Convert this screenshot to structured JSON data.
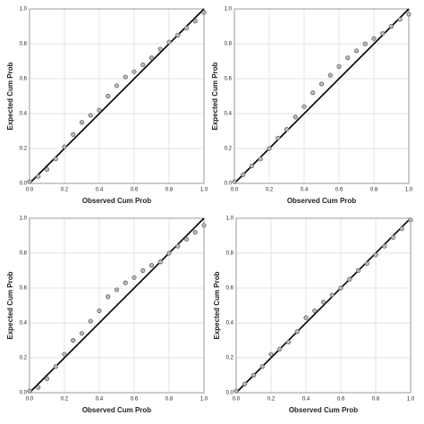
{
  "chart_data": [
    {
      "type": "scatter",
      "x_label": "Observed Cum Prob",
      "y_label": "Expected Cum Prob",
      "x": [
        0,
        0.05,
        0.1,
        0.15,
        0.2,
        0.25,
        0.3,
        0.35,
        0.4,
        0.45,
        0.5,
        0.55,
        0.6,
        0.65,
        0.7,
        0.75,
        0.8,
        0.85,
        0.9,
        0.95,
        1.0
      ],
      "y": [
        0.01,
        0.04,
        0.08,
        0.14,
        0.21,
        0.28,
        0.35,
        0.39,
        0.42,
        0.5,
        0.56,
        0.61,
        0.64,
        0.68,
        0.72,
        0.77,
        0.81,
        0.85,
        0.89,
        0.93,
        0.98
      ],
      "xlim": [
        0,
        1
      ],
      "ylim": [
        0,
        1
      ],
      "xticks": [
        {
          "value": 0,
          "label": "0.0"
        },
        0.2,
        0.4,
        0.6,
        0.8,
        {
          "value": 1,
          "label": "1.0"
        }
      ],
      "yticks": [
        {
          "value": 0,
          "label": "0.0"
        },
        0.2,
        0.4,
        0.6,
        0.8,
        {
          "value": 1,
          "label": "1.0"
        }
      ],
      "grid": true,
      "reference_line": true,
      "color": "#666666"
    },
    {
      "type": "scatter",
      "x_label": "Observed Cum Prob",
      "y_label": "Expected Cum Prob",
      "x": [
        0,
        0.05,
        0.1,
        0.15,
        0.2,
        0.25,
        0.3,
        0.35,
        0.4,
        0.45,
        0.5,
        0.55,
        0.6,
        0.65,
        0.7,
        0.75,
        0.8,
        0.85,
        0.9,
        0.95,
        1.0
      ],
      "y": [
        0.01,
        0.05,
        0.1,
        0.14,
        0.2,
        0.26,
        0.31,
        0.38,
        0.44,
        0.52,
        0.57,
        0.62,
        0.67,
        0.72,
        0.76,
        0.8,
        0.83,
        0.86,
        0.9,
        0.94,
        0.97
      ],
      "xlim": [
        0,
        1
      ],
      "ylim": [
        0,
        1
      ],
      "xticks": [
        {
          "value": 0,
          "label": "0.0"
        },
        0.2,
        0.4,
        0.6,
        0.8,
        {
          "value": 1,
          "label": "1.0"
        }
      ],
      "yticks": [
        {
          "value": 0,
          "label": "0.0"
        },
        0.2,
        0.4,
        0.6,
        0.8,
        {
          "value": 1,
          "label": "1.0"
        }
      ],
      "grid": true,
      "reference_line": true,
      "color": "#666666"
    },
    {
      "type": "scatter",
      "x_label": "Observed Cum Prob",
      "y_label": "Expected Cum Prob",
      "x": [
        0,
        0.05,
        0.1,
        0.15,
        0.2,
        0.25,
        0.3,
        0.35,
        0.4,
        0.45,
        0.5,
        0.55,
        0.6,
        0.65,
        0.7,
        0.75,
        0.8,
        0.85,
        0.9,
        0.95,
        1.0
      ],
      "y": [
        0.01,
        0.03,
        0.08,
        0.15,
        0.22,
        0.3,
        0.34,
        0.41,
        0.47,
        0.55,
        0.59,
        0.63,
        0.66,
        0.7,
        0.73,
        0.75,
        0.8,
        0.84,
        0.88,
        0.92,
        0.96
      ],
      "xlim": [
        0,
        1
      ],
      "ylim": [
        0,
        1
      ],
      "xticks": [
        {
          "value": 0,
          "label": "0.0"
        },
        0.2,
        0.4,
        0.6,
        0.8,
        {
          "value": 1,
          "label": "1.0"
        }
      ],
      "yticks": [
        {
          "value": 0,
          "label": "0.0"
        },
        0.2,
        0.4,
        0.6,
        0.8,
        {
          "value": 1,
          "label": "1.0"
        }
      ],
      "grid": true,
      "reference_line": true,
      "color": "#666666"
    },
    {
      "type": "scatter",
      "x_label": "Observed Cum Prob",
      "y_label": "Expected Cum Prob",
      "x": [
        0,
        0.05,
        0.1,
        0.15,
        0.2,
        0.25,
        0.3,
        0.35,
        0.4,
        0.45,
        0.5,
        0.55,
        0.6,
        0.65,
        0.7,
        0.75,
        0.8,
        0.85,
        0.9,
        0.95,
        1.0
      ],
      "y": [
        0.01,
        0.05,
        0.1,
        0.15,
        0.22,
        0.25,
        0.29,
        0.35,
        0.43,
        0.47,
        0.52,
        0.56,
        0.6,
        0.65,
        0.7,
        0.74,
        0.79,
        0.84,
        0.89,
        0.94,
        0.99
      ],
      "xlim": [
        0,
        1
      ],
      "ylim": [
        0,
        1
      ],
      "xticks": [
        {
          "value": 0,
          "label": "0.0"
        },
        0.2,
        0.4,
        0.6,
        0.8,
        {
          "value": 1,
          "label": "1.0"
        }
      ],
      "yticks": [
        {
          "value": 0,
          "label": "0.0"
        },
        0.2,
        0.4,
        0.6,
        0.8,
        {
          "value": 1,
          "label": "1.0"
        }
      ],
      "grid": true,
      "reference_line": true,
      "color": "#666666"
    }
  ]
}
